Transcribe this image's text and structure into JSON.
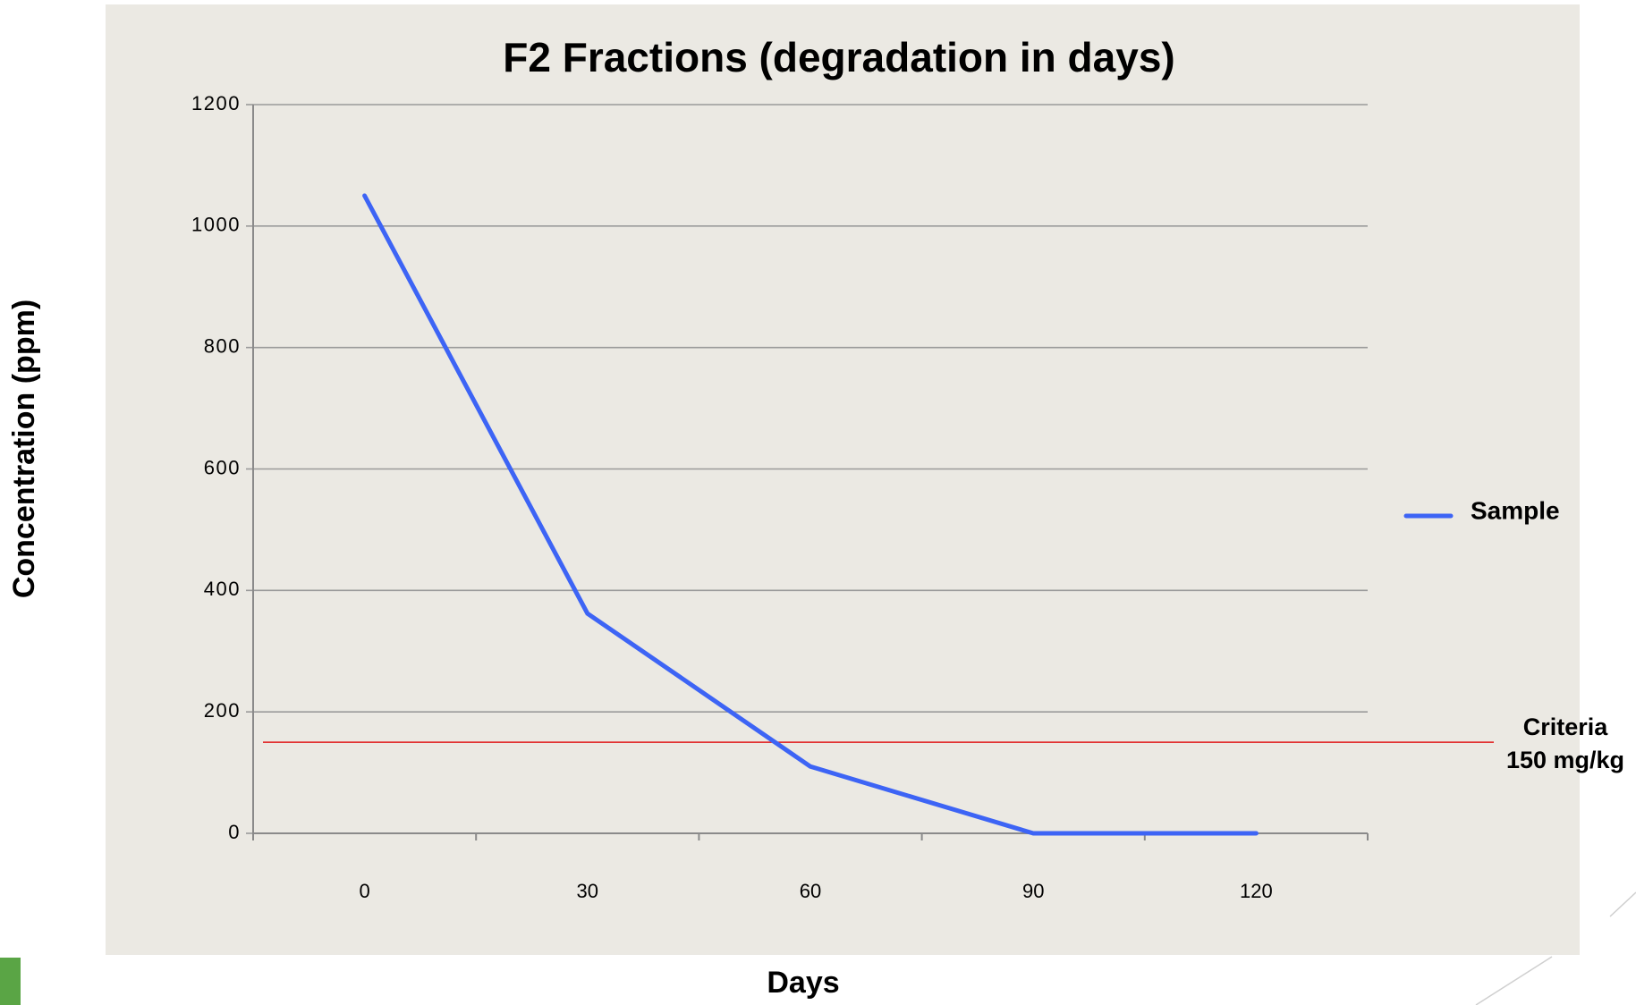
{
  "chart_data": {
    "type": "line",
    "title": "F2 Fractions (degradation in days)",
    "x_label": "Days",
    "y_label": "Concentration (ppm)",
    "categories": [
      "0",
      "30",
      "60",
      "90",
      "120"
    ],
    "series": [
      {
        "name": "Sample",
        "color": "#3d64f5",
        "values": [
          1050,
          362,
          110,
          0,
          0
        ]
      }
    ],
    "ylim": [
      0,
      1200
    ],
    "yticks": [
      0,
      200,
      400,
      600,
      800,
      1000,
      1200
    ],
    "grid": true,
    "legend": "right",
    "criteria": {
      "value": 150,
      "color": "#e01818",
      "label_lines": [
        "Criteria",
        "150 mg/kg"
      ]
    }
  }
}
